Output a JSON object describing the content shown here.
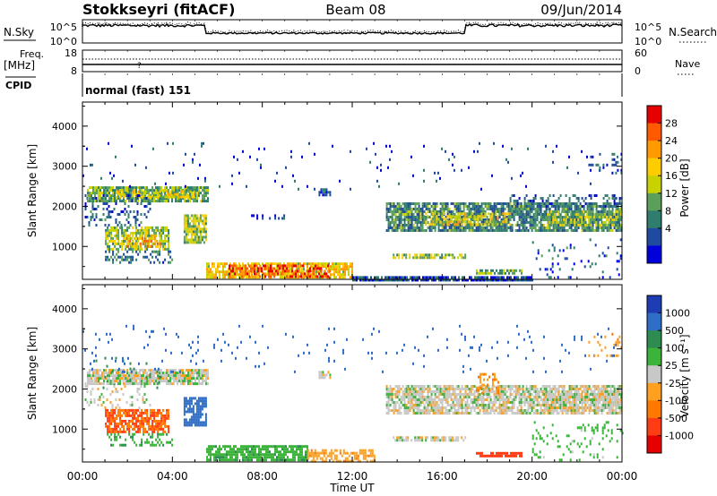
{
  "header": {
    "station": "Stokkseyri (fitACF)",
    "beam": "Beam 08",
    "date": "09/Jun/2014"
  },
  "panels": {
    "nsky": {
      "left_label": "N.Sky",
      "right_label": "N.Search",
      "left_ticks": [
        "10^5",
        "10^0"
      ],
      "right_ticks": [
        "10^5",
        "10^0"
      ]
    },
    "freq": {
      "label_top": "Freq.",
      "label_unit": "[MHz]",
      "left_ticks": [
        "18",
        "8"
      ],
      "right_ticks": [
        "60",
        "0"
      ],
      "right_label": "Nave"
    },
    "cpid": {
      "label": "CPID",
      "text": "normal (fast) 151"
    },
    "power": {
      "ylabel": "Slant Range [km]",
      "yticks": [
        "4000",
        "3000",
        "2000",
        "1000"
      ],
      "colorbar_label": "Power [dB]",
      "colorbar_ticks": [
        "28",
        "24",
        "20",
        "16",
        "12",
        "8",
        "4"
      ],
      "colorbar_colors": [
        "#e60000",
        "#ff5a00",
        "#ff9a00",
        "#ffcc00",
        "#c8d200",
        "#5aa05a",
        "#2e7d6e",
        "#1e4aa0",
        "#0000dc"
      ]
    },
    "velocity": {
      "ylabel": "Slant Range [km]",
      "yticks": [
        "4000",
        "3000",
        "2000",
        "1000"
      ],
      "colorbar_label": "Velocity [m s⁻¹]",
      "colorbar_ticks": [
        "1000",
        "500",
        "100",
        "25",
        "-25",
        "-100",
        "-500",
        "-1000"
      ],
      "colorbar_colors": [
        "#1e3cb4",
        "#2e6ec8",
        "#2e8c50",
        "#3cb43c",
        "#c8c8c8",
        "#ffa020",
        "#ff7800",
        "#ff3c14",
        "#e60000"
      ]
    }
  },
  "xaxis": {
    "label": "Time UT",
    "ticks": [
      "00:00",
      "04:00",
      "08:00",
      "12:00",
      "16:00",
      "20:00",
      "00:00"
    ]
  },
  "chart_data": [
    {
      "type": "heatmap",
      "title": "Power [dB]",
      "ylabel": "Slant Range [km]",
      "xlabel": "Time UT",
      "ylim": [
        180,
        4600
      ],
      "xlim": [
        0,
        24
      ],
      "clim": [
        0,
        30
      ],
      "regions": [
        {
          "t0": 0.2,
          "t1": 5.6,
          "r0": 2100,
          "r1": 2500,
          "value": 12,
          "density": 0.85
        },
        {
          "t0": 1.5,
          "t1": 5.0,
          "r0": 2200,
          "r1": 2400,
          "value": 16,
          "density": 0.6
        },
        {
          "t0": 0.1,
          "t1": 3.0,
          "r0": 1500,
          "r1": 2300,
          "value": 6,
          "density": 0.25
        },
        {
          "t0": 1.0,
          "t1": 3.8,
          "r0": 900,
          "r1": 1500,
          "value": 13,
          "density": 0.75
        },
        {
          "t0": 2.0,
          "t1": 3.5,
          "r0": 1000,
          "r1": 1300,
          "value": 20,
          "density": 0.55
        },
        {
          "t0": 4.5,
          "t1": 5.5,
          "r0": 1100,
          "r1": 1800,
          "value": 14,
          "density": 0.8
        },
        {
          "t0": 1.0,
          "t1": 4.0,
          "r0": 600,
          "r1": 900,
          "value": 8,
          "density": 0.35
        },
        {
          "t0": 5.5,
          "t1": 12.0,
          "r0": 200,
          "r1": 600,
          "value": 18,
          "density": 0.8
        },
        {
          "t0": 6.5,
          "t1": 11.0,
          "r0": 250,
          "r1": 550,
          "value": 26,
          "density": 0.55
        },
        {
          "t0": 12.0,
          "t1": 20.0,
          "r0": 180,
          "r1": 260,
          "value": 5,
          "density": 0.9
        },
        {
          "t0": 13.8,
          "t1": 17.0,
          "r0": 720,
          "r1": 820,
          "value": 14,
          "density": 0.7
        },
        {
          "t0": 17.5,
          "t1": 19.5,
          "r0": 320,
          "r1": 430,
          "value": 12,
          "density": 0.7
        },
        {
          "t0": 13.5,
          "t1": 24.0,
          "r0": 1400,
          "r1": 2100,
          "value": 9,
          "density": 0.8
        },
        {
          "t0": 15.0,
          "t1": 19.0,
          "r0": 1550,
          "r1": 1850,
          "value": 16,
          "density": 0.55
        },
        {
          "t0": 20.5,
          "t1": 24.0,
          "r0": 1550,
          "r1": 1900,
          "value": 14,
          "density": 0.6
        },
        {
          "t0": 19.0,
          "t1": 24.0,
          "r0": 2000,
          "r1": 2300,
          "value": 6,
          "density": 0.3
        },
        {
          "t0": 0.0,
          "t1": 24.0,
          "r0": 2400,
          "r1": 3600,
          "value": 4,
          "density": 0.02
        },
        {
          "t0": 22.5,
          "t1": 24.0,
          "r0": 2800,
          "r1": 3400,
          "value": 5,
          "density": 0.18
        },
        {
          "t0": 20.0,
          "t1": 24.0,
          "r0": 200,
          "r1": 1200,
          "value": 6,
          "density": 0.1
        },
        {
          "t0": 7.5,
          "t1": 9.0,
          "r0": 1700,
          "r1": 1800,
          "value": 4,
          "density": 0.3
        },
        {
          "t0": 10.5,
          "t1": 11.0,
          "r0": 2250,
          "r1": 2450,
          "value": 4,
          "density": 0.5
        }
      ]
    },
    {
      "type": "heatmap",
      "title": "Velocity [m s⁻¹]",
      "ylabel": "Slant Range [km]",
      "xlabel": "Time UT",
      "ylim": [
        180,
        4600
      ],
      "xlim": [
        0,
        24
      ],
      "clim": [
        -1000,
        1000
      ],
      "regions": [
        {
          "t0": 0.2,
          "t1": 5.6,
          "r0": 2100,
          "r1": 2500,
          "value": 0,
          "density": 0.85
        },
        {
          "t0": 0.5,
          "t1": 3.5,
          "r0": 2000,
          "r1": 2800,
          "value": 200,
          "density": 0.06
        },
        {
          "t0": 0.1,
          "t1": 3.0,
          "r0": 1500,
          "r1": 2300,
          "value": 0,
          "density": 0.2
        },
        {
          "t0": 1.0,
          "t1": 3.8,
          "r0": 900,
          "r1": 1500,
          "value": -300,
          "density": 0.75
        },
        {
          "t0": 4.5,
          "t1": 5.5,
          "r0": 1100,
          "r1": 1800,
          "value": 300,
          "density": 0.8
        },
        {
          "t0": 1.0,
          "t1": 4.0,
          "r0": 600,
          "r1": 900,
          "value": 80,
          "density": 0.35
        },
        {
          "t0": 5.5,
          "t1": 10.0,
          "r0": 220,
          "r1": 600,
          "value": 70,
          "density": 0.8
        },
        {
          "t0": 10.0,
          "t1": 13.0,
          "r0": 200,
          "r1": 500,
          "value": -70,
          "density": 0.6
        },
        {
          "t0": 13.8,
          "t1": 17.0,
          "r0": 720,
          "r1": 820,
          "value": 0,
          "density": 0.7
        },
        {
          "t0": 17.5,
          "t1": 19.5,
          "r0": 320,
          "r1": 430,
          "value": -400,
          "density": 0.8
        },
        {
          "t0": 13.5,
          "t1": 24.0,
          "r0": 1400,
          "r1": 2100,
          "value": 0,
          "density": 0.8
        },
        {
          "t0": 17.5,
          "t1": 18.5,
          "r0": 1900,
          "r1": 2400,
          "value": -100,
          "density": 0.35
        },
        {
          "t0": 20.5,
          "t1": 24.0,
          "r0": 1550,
          "r1": 1900,
          "value": 0,
          "density": 0.6
        },
        {
          "t0": 0.0,
          "t1": 24.0,
          "r0": 2400,
          "r1": 3600,
          "value": 300,
          "density": 0.03
        },
        {
          "t0": 22.5,
          "t1": 24.0,
          "r0": 2800,
          "r1": 3400,
          "value": -80,
          "density": 0.18
        },
        {
          "t0": 20.0,
          "t1": 24.0,
          "r0": 200,
          "r1": 1200,
          "value": 60,
          "density": 0.12
        },
        {
          "t0": 10.5,
          "t1": 11.0,
          "r0": 2250,
          "r1": 2450,
          "value": 0,
          "density": 0.5
        }
      ]
    }
  ]
}
